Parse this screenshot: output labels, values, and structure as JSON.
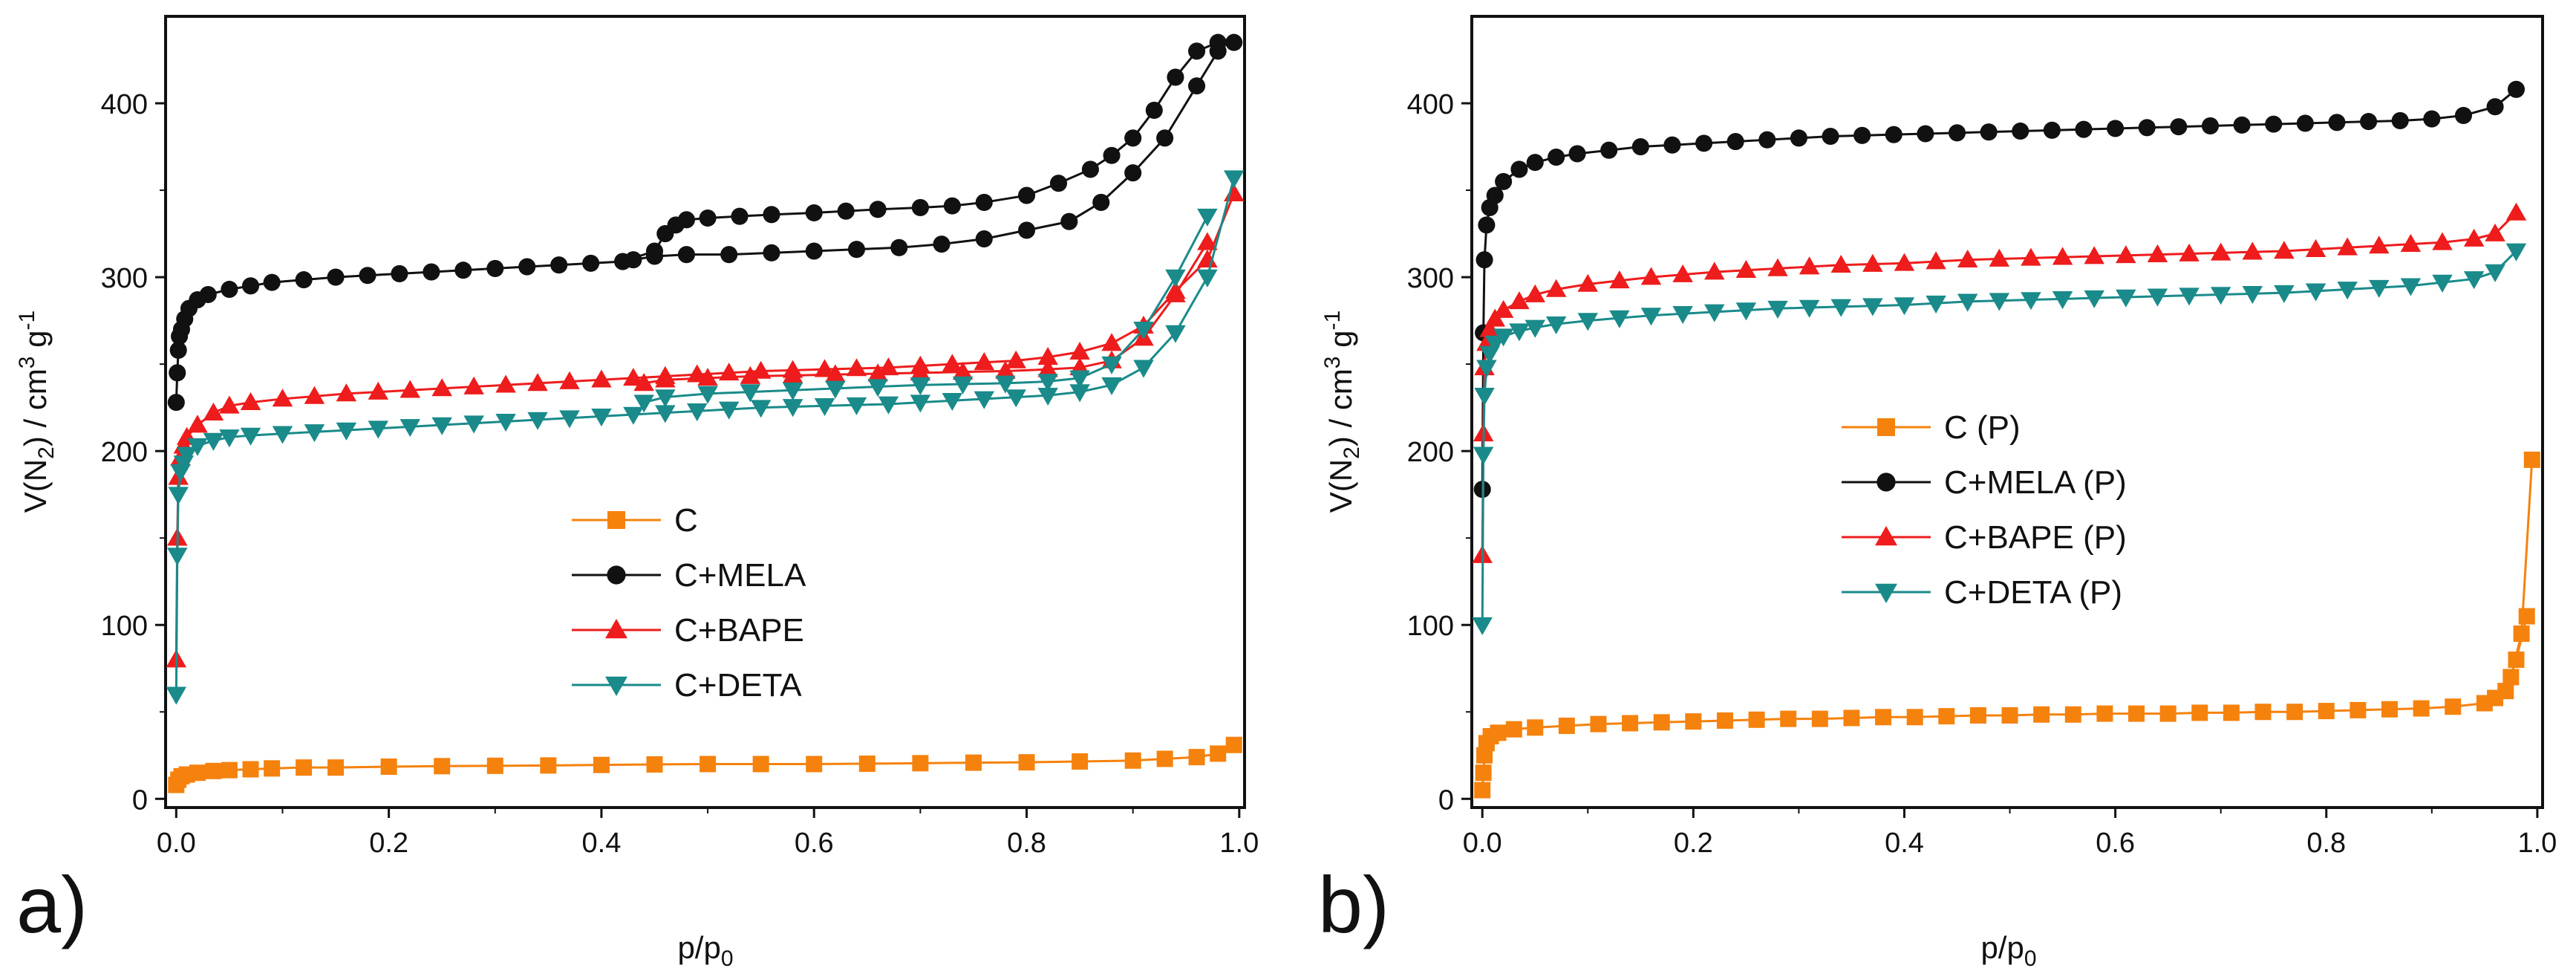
{
  "figure": {
    "panel_labels": [
      "a)",
      "b)"
    ]
  },
  "chart_data": [
    {
      "type": "scatter",
      "panel": "a)",
      "title": "",
      "xlabel": "p/p0",
      "ylabel": "V(N2) / cm3 g-1",
      "xlim": [
        -0.01,
        1.005
      ],
      "ylim": [
        -5,
        450
      ],
      "xticks": [
        "0.0",
        "0.2",
        "0.4",
        "0.6",
        "0.8",
        "1.0"
      ],
      "xtick_values": [
        0.0,
        0.2,
        0.4,
        0.6,
        0.8,
        1.0
      ],
      "yticks": [
        "0",
        "100",
        "200",
        "300",
        "400"
      ],
      "ytick_values": [
        0,
        100,
        200,
        300,
        400
      ],
      "grid": false,
      "legend": {
        "placement": "center"
      },
      "series": [
        {
          "name": "C",
          "color": "#f5820d",
          "marker": "square",
          "x": [
            0.0,
            0.002,
            0.005,
            0.01,
            0.02,
            0.035,
            0.05,
            0.07,
            0.09,
            0.12,
            0.15,
            0.2,
            0.25,
            0.3,
            0.35,
            0.4,
            0.45,
            0.5,
            0.55,
            0.6,
            0.65,
            0.7,
            0.75,
            0.8,
            0.85,
            0.9,
            0.93,
            0.96,
            0.98,
            0.995
          ],
          "y": [
            8,
            11,
            13,
            14,
            15,
            16,
            16.5,
            17,
            17.5,
            18,
            18,
            18.5,
            18.8,
            19,
            19.2,
            19.5,
            19.8,
            20,
            20,
            20,
            20.2,
            20.5,
            20.8,
            21,
            21.5,
            22,
            23,
            24,
            26,
            31
          ]
        },
        {
          "name": "C+MELA",
          "color": "#111111",
          "marker": "circle",
          "x": [
            0.0,
            0.001,
            0.002,
            0.003,
            0.005,
            0.008,
            0.012,
            0.02,
            0.03,
            0.05,
            0.07,
            0.09,
            0.12,
            0.15,
            0.18,
            0.21,
            0.24,
            0.27,
            0.3,
            0.33,
            0.36,
            0.39,
            0.42,
            0.45,
            0.46,
            0.47,
            0.48,
            0.5,
            0.53,
            0.56,
            0.6,
            0.63,
            0.66,
            0.7,
            0.73,
            0.76,
            0.8,
            0.83,
            0.86,
            0.88,
            0.9,
            0.92,
            0.94,
            0.96,
            0.98,
            0.995
          ],
          "y": [
            228,
            245,
            258,
            266,
            270,
            276,
            282,
            287,
            290,
            293,
            295,
            297,
            298.5,
            300,
            301,
            302,
            303,
            304,
            305,
            306,
            307,
            308,
            309,
            315,
            325,
            330,
            333,
            334,
            335,
            336,
            337,
            338,
            339,
            340,
            341,
            343,
            347,
            354,
            362,
            370,
            380,
            396,
            415,
            430,
            435,
            435
          ]
        },
        {
          "name": "C+MELA",
          "color": "#111111",
          "marker": "circle",
          "branch": "desorption",
          "x": [
            0.98,
            0.96,
            0.93,
            0.9,
            0.87,
            0.84,
            0.8,
            0.76,
            0.72,
            0.68,
            0.64,
            0.6,
            0.56,
            0.52,
            0.48,
            0.45,
            0.43
          ],
          "y": [
            430,
            410,
            380,
            360,
            343,
            332,
            327,
            322,
            319,
            317,
            316,
            315,
            314,
            313,
            313,
            312,
            310
          ]
        },
        {
          "name": "C+BAPE",
          "color": "#ee1c1c",
          "marker": "triangle-up",
          "x": [
            0.0,
            0.001,
            0.002,
            0.004,
            0.007,
            0.01,
            0.02,
            0.035,
            0.05,
            0.07,
            0.1,
            0.13,
            0.16,
            0.19,
            0.22,
            0.25,
            0.28,
            0.31,
            0.34,
            0.37,
            0.4,
            0.43,
            0.46,
            0.49,
            0.52,
            0.55,
            0.58,
            0.61,
            0.64,
            0.67,
            0.7,
            0.73,
            0.76,
            0.79,
            0.82,
            0.85,
            0.88,
            0.91,
            0.94,
            0.97,
            0.995
          ],
          "y": [
            80,
            150,
            185,
            196,
            203,
            208,
            215,
            222,
            226,
            228,
            230,
            231.5,
            233,
            234,
            235,
            236,
            237,
            238,
            239,
            240,
            241,
            242,
            243,
            244,
            245,
            246,
            246.5,
            247,
            247.5,
            248,
            249,
            250,
            251,
            252,
            254,
            257,
            262,
            272,
            292,
            310,
            348
          ]
        },
        {
          "name": "C+BAPE",
          "color": "#ee1c1c",
          "marker": "triangle-up",
          "branch": "desorption",
          "x": [
            0.97,
            0.94,
            0.91,
            0.88,
            0.85,
            0.82,
            0.78,
            0.74,
            0.7,
            0.66,
            0.62,
            0.58,
            0.54,
            0.5,
            0.46,
            0.44
          ],
          "y": [
            320,
            290,
            265,
            252,
            248,
            247,
            246,
            245.5,
            245,
            244.5,
            244,
            243.5,
            243,
            242,
            241,
            239
          ]
        },
        {
          "name": "C+DETA",
          "color": "#1a8a8a",
          "marker": "triangle-down",
          "x": [
            0.0,
            0.001,
            0.002,
            0.004,
            0.007,
            0.01,
            0.02,
            0.035,
            0.05,
            0.07,
            0.1,
            0.13,
            0.16,
            0.19,
            0.22,
            0.25,
            0.28,
            0.31,
            0.34,
            0.37,
            0.4,
            0.43,
            0.46,
            0.49,
            0.52,
            0.55,
            0.58,
            0.61,
            0.64,
            0.67,
            0.7,
            0.73,
            0.76,
            0.79,
            0.82,
            0.85,
            0.88,
            0.91,
            0.94,
            0.97,
            0.995
          ],
          "y": [
            60,
            140,
            175,
            188,
            193,
            198,
            203,
            206,
            208,
            209,
            210,
            211,
            212,
            213,
            214,
            215,
            216,
            217,
            218,
            219,
            220,
            221,
            222,
            223,
            224,
            225,
            225.5,
            226,
            226.5,
            227,
            228,
            229,
            230,
            231,
            232,
            234,
            238,
            248,
            268,
            300,
            357
          ]
        },
        {
          "name": "C+DETA",
          "color": "#1a8a8a",
          "marker": "triangle-down",
          "branch": "desorption",
          "x": [
            0.97,
            0.94,
            0.91,
            0.88,
            0.85,
            0.82,
            0.78,
            0.74,
            0.7,
            0.66,
            0.62,
            0.58,
            0.54,
            0.5,
            0.46,
            0.44
          ],
          "y": [
            335,
            300,
            270,
            250,
            242,
            240,
            239,
            238.5,
            238,
            237,
            236,
            235,
            234,
            233,
            231,
            228
          ]
        }
      ],
      "legend_entries": [
        "C",
        "C+MELA",
        "C+BAPE",
        "C+DETA"
      ]
    },
    {
      "type": "scatter",
      "panel": "b)",
      "title": "",
      "xlabel": "p/p0",
      "ylabel": "V(N2) / cm3 g-1",
      "xlim": [
        -0.01,
        1.005
      ],
      "ylim": [
        -5,
        450
      ],
      "xticks": [
        "0.0",
        "0.2",
        "0.4",
        "0.6",
        "0.8",
        "1.0"
      ],
      "xtick_values": [
        0.0,
        0.2,
        0.4,
        0.6,
        0.8,
        1.0
      ],
      "yticks": [
        "0",
        "100",
        "200",
        "300",
        "400"
      ],
      "ytick_values": [
        0,
        100,
        200,
        300,
        400
      ],
      "grid": false,
      "legend": {
        "placement": "center"
      },
      "series": [
        {
          "name": "C (P)",
          "color": "#f5820d",
          "marker": "square",
          "x": [
            0.0,
            0.001,
            0.002,
            0.004,
            0.008,
            0.015,
            0.03,
            0.05,
            0.08,
            0.11,
            0.14,
            0.17,
            0.2,
            0.23,
            0.26,
            0.29,
            0.32,
            0.35,
            0.38,
            0.41,
            0.44,
            0.47,
            0.5,
            0.53,
            0.56,
            0.59,
            0.62,
            0.65,
            0.68,
            0.71,
            0.74,
            0.77,
            0.8,
            0.83,
            0.86,
            0.89,
            0.92,
            0.95,
            0.97,
            0.98,
            0.99
          ],
          "y": [
            5,
            15,
            25,
            32,
            36,
            38,
            40,
            41,
            42,
            43,
            43.5,
            44,
            44.5,
            45,
            45.5,
            46,
            46,
            46.5,
            47,
            47,
            47.5,
            48,
            48,
            48.5,
            48.5,
            49,
            49,
            49,
            49.5,
            49.5,
            50,
            50,
            50.5,
            51,
            51.5,
            52,
            53,
            55,
            62,
            80,
            105
          ]
        },
        {
          "name": "C (P)",
          "color": "#f5820d",
          "marker": "square",
          "branch": "desorption",
          "x": [
            0.995,
            0.985,
            0.975,
            0.96
          ],
          "y": [
            195,
            95,
            70,
            58
          ]
        },
        {
          "name": "C+MELA (P)",
          "color": "#111111",
          "marker": "circle",
          "x": [
            0.0,
            0.001,
            0.002,
            0.004,
            0.007,
            0.012,
            0.02,
            0.035,
            0.05,
            0.07,
            0.09,
            0.12,
            0.15,
            0.18,
            0.21,
            0.24,
            0.27,
            0.3,
            0.33,
            0.36,
            0.39,
            0.42,
            0.45,
            0.48,
            0.51,
            0.54,
            0.57,
            0.6,
            0.63,
            0.66,
            0.69,
            0.72,
            0.75,
            0.78,
            0.81,
            0.84,
            0.87,
            0.9,
            0.93,
            0.96,
            0.98
          ],
          "y": [
            178,
            268,
            310,
            330,
            340,
            347,
            355,
            362,
            366,
            369,
            371,
            373,
            375,
            376,
            377,
            378,
            379,
            380,
            381,
            381.5,
            382,
            382.5,
            383,
            383.5,
            384,
            384.5,
            385,
            385.5,
            386,
            386.5,
            387,
            387.5,
            388,
            388.5,
            389,
            389.5,
            390,
            391,
            393,
            398,
            408
          ]
        },
        {
          "name": "C+BAPE (P)",
          "color": "#ee1c1c",
          "marker": "triangle-up",
          "x": [
            0.0,
            0.001,
            0.002,
            0.004,
            0.007,
            0.012,
            0.02,
            0.035,
            0.05,
            0.07,
            0.1,
            0.13,
            0.16,
            0.19,
            0.22,
            0.25,
            0.28,
            0.31,
            0.34,
            0.37,
            0.4,
            0.43,
            0.46,
            0.49,
            0.52,
            0.55,
            0.58,
            0.61,
            0.64,
            0.67,
            0.7,
            0.73,
            0.76,
            0.79,
            0.82,
            0.85,
            0.88,
            0.91,
            0.94,
            0.96,
            0.98
          ],
          "y": [
            140,
            210,
            248,
            262,
            270,
            276,
            281,
            286,
            290,
            293,
            296,
            298,
            300,
            301.5,
            303,
            304,
            305,
            306,
            307,
            307.5,
            308,
            309,
            310,
            310.5,
            311,
            311.5,
            312,
            312.5,
            313,
            313.5,
            314,
            314.5,
            315,
            316,
            317,
            318,
            319,
            320,
            322,
            325,
            337
          ]
        },
        {
          "name": "C+DETA (P)",
          "color": "#1a8a8a",
          "marker": "triangle-down",
          "x": [
            0.0,
            0.001,
            0.002,
            0.004,
            0.007,
            0.012,
            0.02,
            0.035,
            0.05,
            0.07,
            0.1,
            0.13,
            0.16,
            0.19,
            0.22,
            0.25,
            0.28,
            0.31,
            0.34,
            0.37,
            0.4,
            0.43,
            0.46,
            0.49,
            0.52,
            0.55,
            0.58,
            0.61,
            0.64,
            0.67,
            0.7,
            0.73,
            0.76,
            0.79,
            0.82,
            0.85,
            0.88,
            0.91,
            0.94,
            0.96,
            0.98
          ],
          "y": [
            100,
            198,
            232,
            248,
            256,
            262,
            266,
            269,
            271,
            273,
            275,
            276.5,
            278,
            279,
            280,
            281,
            282,
            282.5,
            283,
            283.5,
            284,
            285,
            286,
            286.5,
            287,
            287.5,
            288,
            288.5,
            289,
            289.5,
            290,
            290.5,
            291,
            292,
            293,
            294,
            295,
            297,
            299,
            303,
            315
          ]
        }
      ],
      "legend_entries": [
        "C (P)",
        "C+MELA (P)",
        "C+BAPE (P)",
        "C+DETA (P)"
      ]
    }
  ]
}
